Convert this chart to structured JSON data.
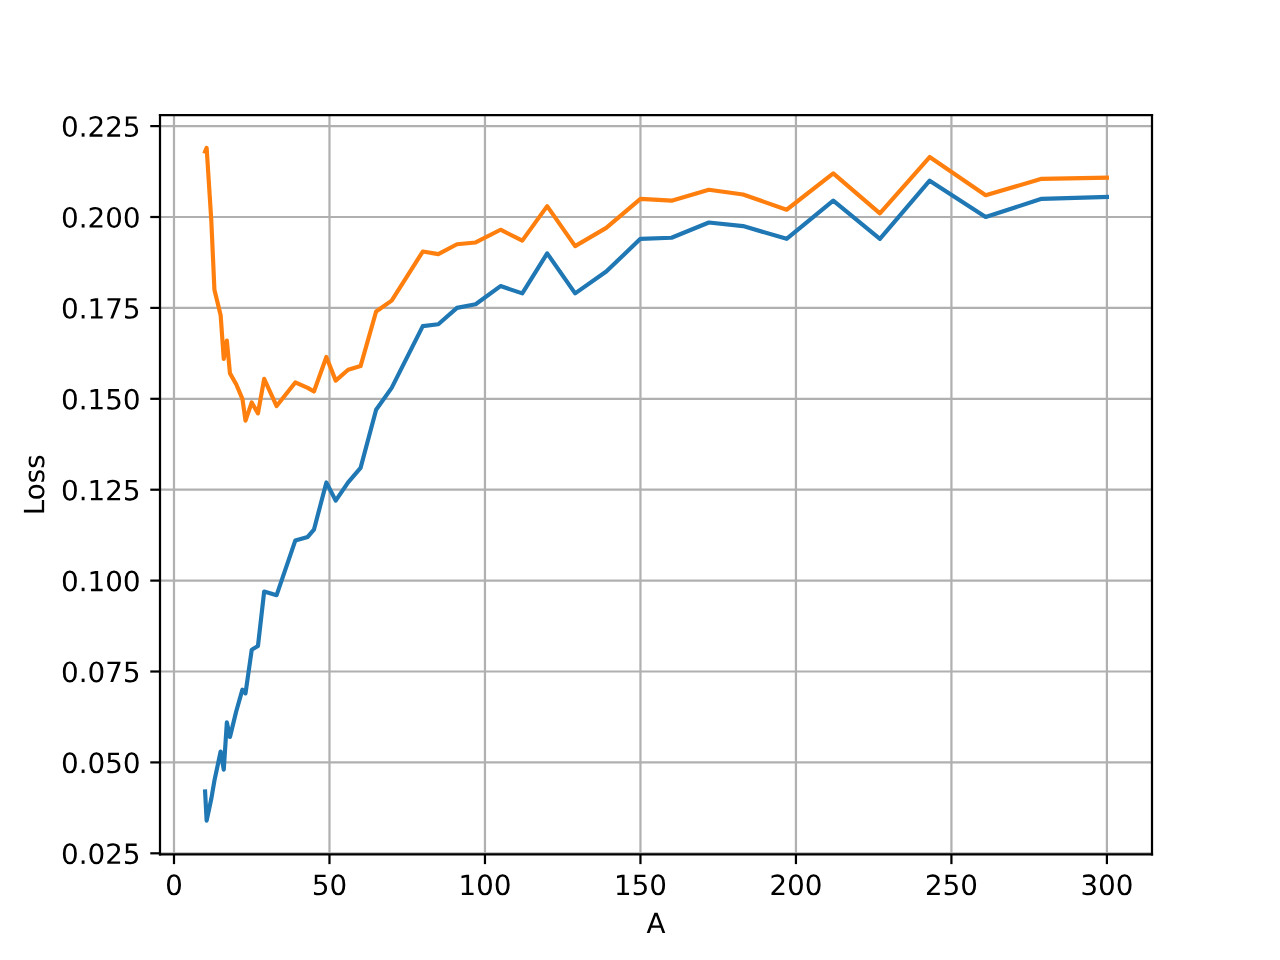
{
  "chart_data": {
    "type": "line",
    "xlabel": "A",
    "ylabel": "Loss",
    "xlim": [
      -4.5,
      314.5
    ],
    "ylim": [
      0.0247,
      0.228
    ],
    "xticks": [
      0,
      50,
      100,
      150,
      200,
      250,
      300
    ],
    "yticks": [
      {
        "value": 0.025,
        "label": "0.025"
      },
      {
        "value": 0.05,
        "label": "0.050"
      },
      {
        "value": 0.075,
        "label": "0.075"
      },
      {
        "value": 0.1,
        "label": "0.100"
      },
      {
        "value": 0.125,
        "label": "0.125"
      },
      {
        "value": 0.15,
        "label": "0.150"
      },
      {
        "value": 0.175,
        "label": "0.175"
      },
      {
        "value": 0.2,
        "label": "0.200"
      },
      {
        "value": 0.225,
        "label": "0.225"
      }
    ],
    "grid": true,
    "marker": "none",
    "line_style": "solid",
    "x": [
      10,
      10.5,
      12,
      13,
      15,
      16,
      17,
      18,
      20,
      22,
      23,
      25,
      27,
      29,
      33,
      39,
      43,
      45,
      49,
      52,
      56,
      60,
      65,
      70,
      80,
      85,
      91,
      97,
      105,
      112,
      120,
      129,
      139,
      150,
      160,
      172,
      183,
      197,
      212,
      227,
      243,
      261,
      279,
      300
    ],
    "series": [
      {
        "color": "#1f77b4",
        "values": [
          0.042,
          0.034,
          0.04,
          0.045,
          0.053,
          0.048,
          0.061,
          0.057,
          0.064,
          0.07,
          0.069,
          0.081,
          0.082,
          0.097,
          0.096,
          0.111,
          0.112,
          0.114,
          0.127,
          0.122,
          0.127,
          0.131,
          0.147,
          0.153,
          0.17,
          0.1705,
          0.175,
          0.176,
          0.181,
          0.179,
          0.19,
          0.179,
          0.185,
          0.194,
          0.1943,
          0.1985,
          0.1975,
          0.194,
          0.2045,
          0.194,
          0.21,
          0.2,
          0.205,
          0.2055
        ]
      },
      {
        "color": "#ff7f0e",
        "values": [
          0.218,
          0.219,
          0.199,
          0.18,
          0.173,
          0.161,
          0.166,
          0.157,
          0.154,
          0.15,
          0.144,
          0.149,
          0.146,
          0.1555,
          0.148,
          0.1545,
          0.153,
          0.152,
          0.1615,
          0.155,
          0.158,
          0.159,
          0.174,
          0.177,
          0.1905,
          0.1898,
          0.1925,
          0.193,
          0.1965,
          0.1935,
          0.203,
          0.192,
          0.197,
          0.205,
          0.2045,
          0.2075,
          0.2062,
          0.202,
          0.212,
          0.201,
          0.2165,
          0.206,
          0.2105,
          0.2108
        ]
      }
    ]
  }
}
